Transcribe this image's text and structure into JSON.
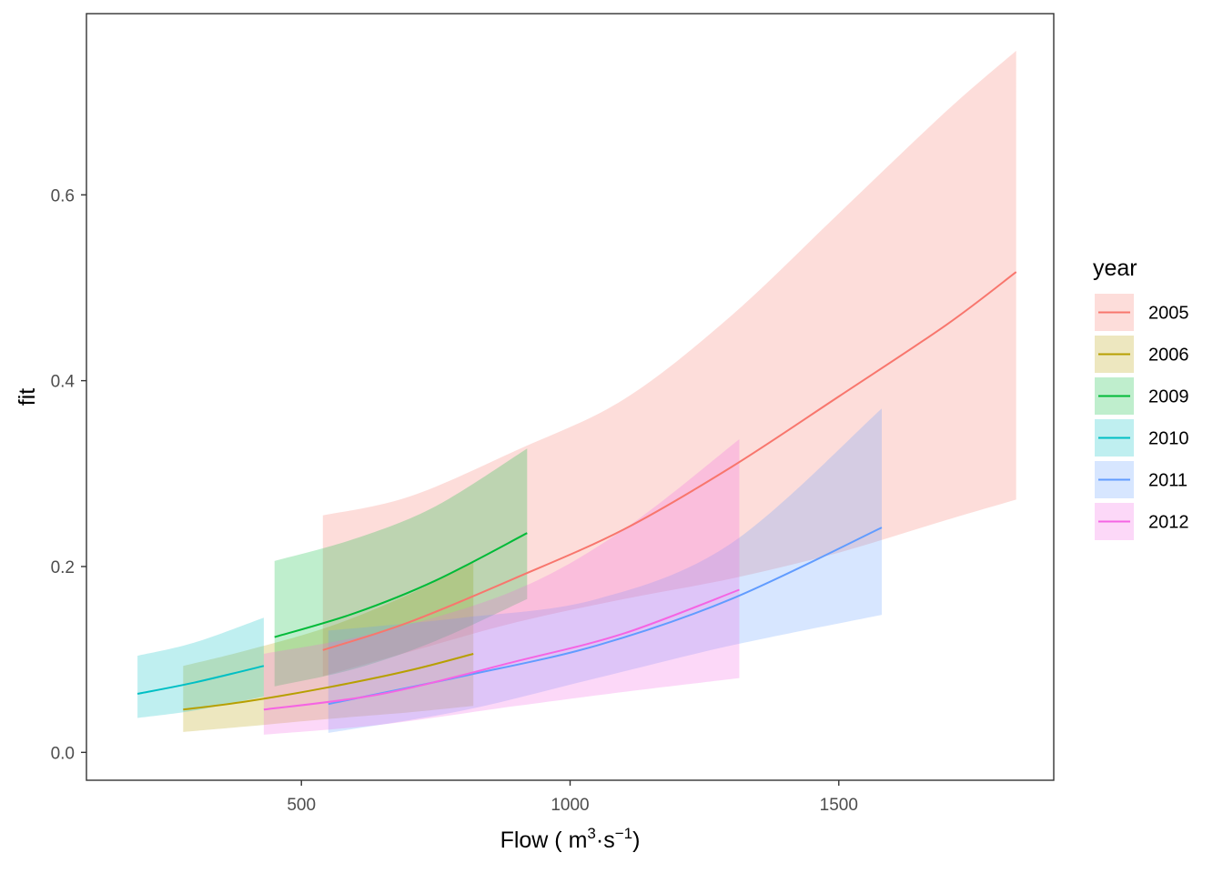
{
  "chart_data": {
    "type": "line",
    "title": "",
    "xlabel": "Flow ( m",
    "xlabel_sup1": "3",
    "xlabel_mid": "·s",
    "xlabel_sup2": "−1",
    "xlabel_end": ")",
    "ylabel": "fit",
    "xlim": [
      100,
      1900
    ],
    "ylim": [
      -0.03,
      0.795
    ],
    "x_ticks": [
      500,
      1000,
      1500
    ],
    "x_tick_labels": [
      "500",
      "1000",
      "1500"
    ],
    "y_ticks": [
      0.0,
      0.2,
      0.4,
      0.6
    ],
    "y_tick_labels": [
      "0.0",
      "0.2",
      "0.4",
      "0.6"
    ],
    "grid": false,
    "legend": {
      "title": "year",
      "placement": "right"
    },
    "band_opacity": 0.25,
    "series": [
      {
        "name": "2005",
        "color": "#F8766D",
        "x": [
          540,
          700,
          900,
          1100,
          1300,
          1500,
          1700,
          1830
        ],
        "fit": [
          0.11,
          0.14,
          0.188,
          0.24,
          0.307,
          0.383,
          0.46,
          0.517
        ],
        "lower": [
          0.082,
          0.108,
          0.14,
          0.165,
          0.187,
          0.215,
          0.25,
          0.272
        ],
        "upper": [
          0.255,
          0.275,
          0.325,
          0.38,
          0.47,
          0.58,
          0.69,
          0.755
        ]
      },
      {
        "name": "2006",
        "color": "#B79F00",
        "x": [
          280,
          400,
          550,
          700,
          820
        ],
        "fit": [
          0.046,
          0.055,
          0.07,
          0.088,
          0.106
        ],
        "lower": [
          0.022,
          0.028,
          0.036,
          0.043,
          0.05
        ],
        "upper": [
          0.093,
          0.11,
          0.135,
          0.17,
          0.205
        ]
      },
      {
        "name": "2009",
        "color": "#00BA38",
        "x": [
          450,
          600,
          750,
          920
        ],
        "fit": [
          0.124,
          0.15,
          0.185,
          0.236
        ],
        "lower": [
          0.071,
          0.09,
          0.12,
          0.165
        ],
        "upper": [
          0.206,
          0.23,
          0.265,
          0.327
        ]
      },
      {
        "name": "2010",
        "color": "#00BFC4",
        "x": [
          195,
          300,
          430
        ],
        "fit": [
          0.063,
          0.075,
          0.093
        ],
        "lower": [
          0.037,
          0.045,
          0.06
        ],
        "upper": [
          0.104,
          0.118,
          0.145
        ]
      },
      {
        "name": "2011",
        "color": "#619CFF",
        "x": [
          550,
          800,
          1050,
          1300,
          1580
        ],
        "fit": [
          0.052,
          0.082,
          0.115,
          0.165,
          0.242
        ],
        "lower": [
          0.021,
          0.045,
          0.08,
          0.115,
          0.148
        ],
        "upper": [
          0.131,
          0.145,
          0.165,
          0.225,
          0.37
        ]
      },
      {
        "name": "2012",
        "color": "#F564E3",
        "x": [
          430,
          650,
          900,
          1100,
          1315
        ],
        "fit": [
          0.046,
          0.063,
          0.098,
          0.128,
          0.175
        ],
        "lower": [
          0.019,
          0.03,
          0.05,
          0.065,
          0.08
        ],
        "upper": [
          0.106,
          0.13,
          0.175,
          0.24,
          0.337
        ]
      }
    ]
  }
}
